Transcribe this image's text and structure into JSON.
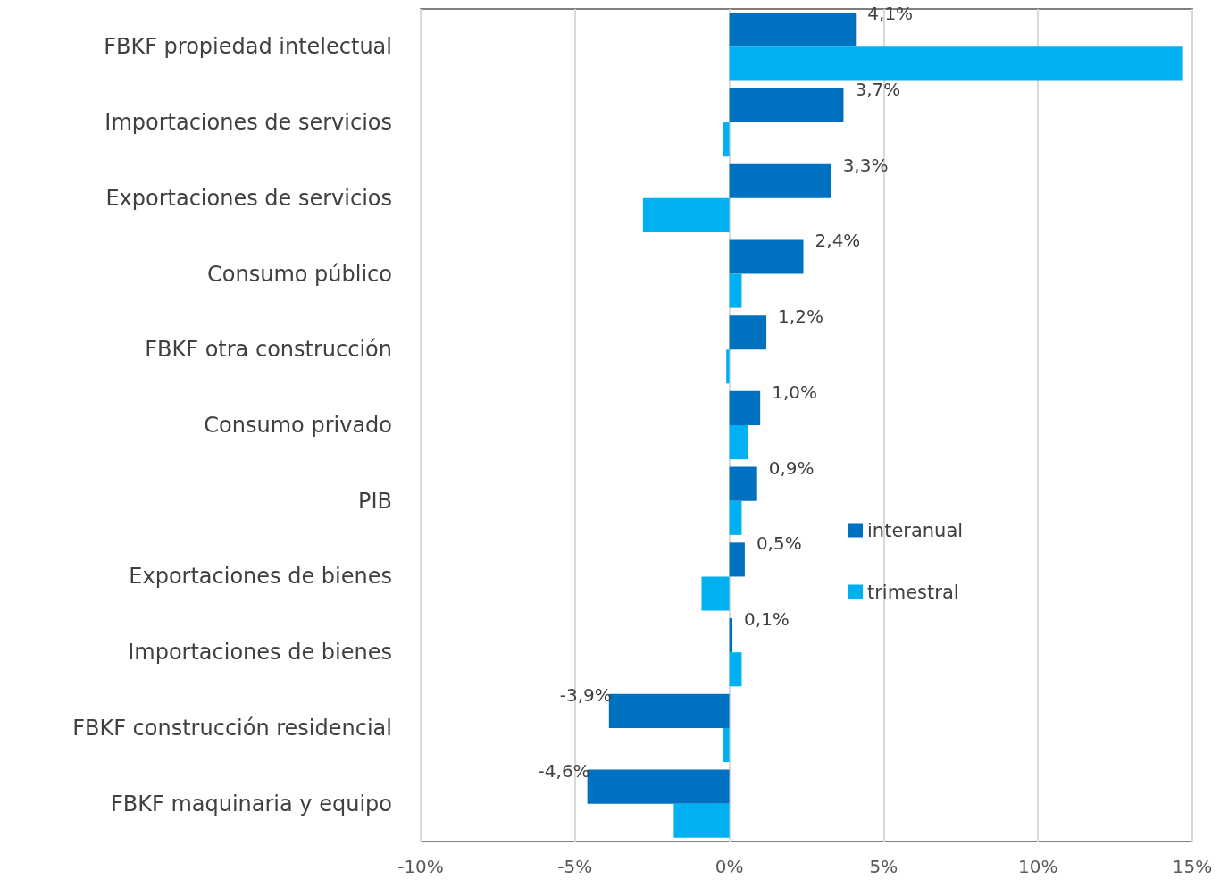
{
  "chart_data": {
    "type": "bar",
    "orientation": "horizontal",
    "categories": [
      "FBKF propiedad intelectual",
      "Importaciones de servicios",
      "Exportaciones de servicios",
      "Consumo público",
      "FBKF otra construcción",
      "Consumo privado",
      "PIB",
      "Exportaciones de bienes",
      "Importaciones de bienes",
      "FBKF construcción residencial",
      "FBKF maquinaria y equipo"
    ],
    "series": [
      {
        "name": "interanual",
        "color": "#0070c0",
        "values": [
          4.1,
          3.7,
          3.3,
          2.4,
          1.2,
          1.0,
          0.9,
          0.5,
          0.1,
          -3.9,
          -4.6
        ],
        "value_labels": [
          "4,1%",
          "3,7%",
          "3,3%",
          "2,4%",
          "1,2%",
          "1,0%",
          "0,9%",
          "0,5%",
          "0,1%",
          "-3,9%",
          "-4,6%"
        ]
      },
      {
        "name": "trimestral",
        "color": "#00b0f0",
        "values": [
          14.7,
          -0.2,
          -2.8,
          0.4,
          -0.1,
          0.6,
          0.4,
          -0.9,
          0.4,
          -0.2,
          -1.8
        ]
      }
    ],
    "xlim": [
      -10,
      15
    ],
    "xticks": [
      {
        "value": -10,
        "label": "-10%"
      },
      {
        "value": -5,
        "label": "-5%"
      },
      {
        "value": 0,
        "label": "0%"
      },
      {
        "value": 5,
        "label": "5%"
      },
      {
        "value": 10,
        "label": "10%"
      },
      {
        "value": 15,
        "label": "15%"
      }
    ],
    "grid": "x",
    "legend": "right"
  }
}
